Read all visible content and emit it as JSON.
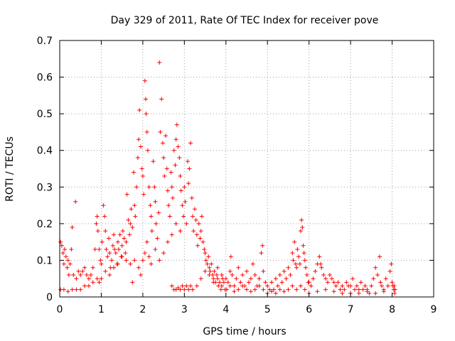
{
  "chart_data": {
    "type": "scatter",
    "title": "Day 329 of 2011, Rate Of TEC Index for receiver pove",
    "xlabel": "GPS time / hours",
    "ylabel": "ROTI / TECUs",
    "xlim": [
      0,
      9
    ],
    "ylim": [
      0,
      0.7
    ],
    "xticks": [
      0,
      1,
      2,
      3,
      4,
      5,
      6,
      7,
      8,
      9
    ],
    "yticks": [
      0,
      0.1,
      0.2,
      0.3,
      0.4,
      0.5,
      0.6,
      0.7
    ],
    "grid": true,
    "marker": "+",
    "color": "#ff0000",
    "points": [
      [
        0.02,
        0.15
      ],
      [
        0.05,
        0.14
      ],
      [
        0.08,
        0.12
      ],
      [
        0.1,
        0.09
      ],
      [
        0.12,
        0.13
      ],
      [
        0.15,
        0.11
      ],
      [
        0.18,
        0.08
      ],
      [
        0.2,
        0.1
      ],
      [
        0.22,
        0.06
      ],
      [
        0.25,
        0.09
      ],
      [
        0.28,
        0.13
      ],
      [
        0.3,
        0.19
      ],
      [
        0.33,
        0.06
      ],
      [
        0.38,
        0.26
      ],
      [
        0.4,
        0.05
      ],
      [
        0.45,
        0.07
      ],
      [
        0.5,
        0.06
      ],
      [
        0.55,
        0.07
      ],
      [
        0.6,
        0.08
      ],
      [
        0.65,
        0.06
      ],
      [
        0.7,
        0.05
      ],
      [
        0.75,
        0.06
      ],
      [
        0.8,
        0.08
      ],
      [
        0.85,
        0.13
      ],
      [
        0.88,
        0.2
      ],
      [
        0.9,
        0.22
      ],
      [
        0.92,
        0.18
      ],
      [
        0.95,
        0.13
      ],
      [
        0.98,
        0.1
      ],
      [
        0.02,
        0.02
      ],
      [
        0.1,
        0.02
      ],
      [
        0.2,
        0.015
      ],
      [
        0.3,
        0.02
      ],
      [
        0.4,
        0.02
      ],
      [
        0.5,
        0.02
      ],
      [
        0.6,
        0.03
      ],
      [
        0.7,
        0.03
      ],
      [
        0.8,
        0.04
      ],
      [
        0.9,
        0.05
      ],
      [
        0.95,
        0.04
      ],
      [
        1.0,
        0.09
      ],
      [
        1.02,
        0.15
      ],
      [
        1.05,
        0.25
      ],
      [
        1.08,
        0.22
      ],
      [
        1.1,
        0.18
      ],
      [
        1.12,
        0.13
      ],
      [
        1.15,
        0.11
      ],
      [
        1.18,
        0.16
      ],
      [
        1.2,
        0.12
      ],
      [
        1.22,
        0.08
      ],
      [
        1.25,
        0.1
      ],
      [
        1.28,
        0.14
      ],
      [
        1.3,
        0.17
      ],
      [
        1.32,
        0.13
      ],
      [
        1.35,
        0.12
      ],
      [
        1.38,
        0.09
      ],
      [
        1.4,
        0.15
      ],
      [
        1.42,
        0.13
      ],
      [
        1.45,
        0.17
      ],
      [
        1.48,
        0.11
      ],
      [
        1.5,
        0.14
      ],
      [
        1.52,
        0.18
      ],
      [
        1.55,
        0.16
      ],
      [
        1.58,
        0.12
      ],
      [
        1.6,
        0.15
      ],
      [
        1.62,
        0.28
      ],
      [
        1.65,
        0.21
      ],
      [
        1.68,
        0.17
      ],
      [
        1.7,
        0.2
      ],
      [
        1.72,
        0.24
      ],
      [
        1.75,
        0.19
      ],
      [
        1.78,
        0.34
      ],
      [
        1.8,
        0.25
      ],
      [
        1.82,
        0.22
      ],
      [
        1.85,
        0.3
      ],
      [
        1.88,
        0.38
      ],
      [
        1.9,
        0.43
      ],
      [
        1.92,
        0.51
      ],
      [
        1.95,
        0.41
      ],
      [
        1.98,
        0.35
      ],
      [
        1.0,
        0.05
      ],
      [
        1.1,
        0.07
      ],
      [
        1.2,
        0.06
      ],
      [
        1.3,
        0.08
      ],
      [
        1.4,
        0.09
      ],
      [
        1.5,
        0.11
      ],
      [
        1.6,
        0.1
      ],
      [
        1.7,
        0.09
      ],
      [
        1.75,
        0.04
      ],
      [
        1.8,
        0.1
      ],
      [
        1.9,
        0.08
      ],
      [
        1.95,
        0.06
      ],
      [
        2.0,
        0.33
      ],
      [
        2.02,
        0.28
      ],
      [
        2.05,
        0.59
      ],
      [
        2.07,
        0.54
      ],
      [
        2.08,
        0.5
      ],
      [
        2.1,
        0.45
      ],
      [
        2.12,
        0.4
      ],
      [
        2.15,
        0.3
      ],
      [
        2.18,
        0.25
      ],
      [
        2.2,
        0.22
      ],
      [
        2.22,
        0.18
      ],
      [
        2.25,
        0.37
      ],
      [
        2.28,
        0.3
      ],
      [
        2.3,
        0.26
      ],
      [
        2.32,
        0.2
      ],
      [
        2.35,
        0.16
      ],
      [
        2.38,
        0.23
      ],
      [
        2.4,
        0.64
      ],
      [
        2.42,
        0.45
      ],
      [
        2.45,
        0.54
      ],
      [
        2.48,
        0.42
      ],
      [
        2.5,
        0.38
      ],
      [
        2.52,
        0.33
      ],
      [
        2.55,
        0.44
      ],
      [
        2.58,
        0.35
      ],
      [
        2.6,
        0.29
      ],
      [
        2.62,
        0.25
      ],
      [
        2.65,
        0.22
      ],
      [
        2.68,
        0.34
      ],
      [
        2.7,
        0.3
      ],
      [
        2.72,
        0.27
      ],
      [
        2.75,
        0.4
      ],
      [
        2.78,
        0.36
      ],
      [
        2.8,
        0.43
      ],
      [
        2.82,
        0.47
      ],
      [
        2.85,
        0.41
      ],
      [
        2.88,
        0.38
      ],
      [
        2.9,
        0.33
      ],
      [
        2.92,
        0.29
      ],
      [
        2.95,
        0.25
      ],
      [
        2.98,
        0.22
      ],
      [
        2.0,
        0.1
      ],
      [
        2.05,
        0.12
      ],
      [
        2.1,
        0.15
      ],
      [
        2.15,
        0.11
      ],
      [
        2.2,
        0.09
      ],
      [
        2.3,
        0.13
      ],
      [
        2.4,
        0.1
      ],
      [
        2.5,
        0.12
      ],
      [
        2.6,
        0.15
      ],
      [
        2.7,
        0.17
      ],
      [
        2.8,
        0.2
      ],
      [
        2.9,
        0.18
      ],
      [
        2.7,
        0.03
      ],
      [
        2.8,
        0.02
      ],
      [
        2.85,
        0.025
      ],
      [
        2.9,
        0.02
      ],
      [
        2.95,
        0.03
      ],
      [
        2.75,
        0.02
      ],
      [
        3.0,
        0.3
      ],
      [
        3.02,
        0.26
      ],
      [
        3.05,
        0.2
      ],
      [
        3.08,
        0.37
      ],
      [
        3.1,
        0.31
      ],
      [
        3.12,
        0.35
      ],
      [
        3.15,
        0.42
      ],
      [
        3.18,
        0.27
      ],
      [
        3.2,
        0.22
      ],
      [
        3.22,
        0.18
      ],
      [
        3.25,
        0.24
      ],
      [
        3.28,
        0.21
      ],
      [
        3.3,
        0.17
      ],
      [
        3.32,
        0.14
      ],
      [
        3.35,
        0.2
      ],
      [
        3.38,
        0.16
      ],
      [
        3.4,
        0.18
      ],
      [
        3.42,
        0.22
      ],
      [
        3.45,
        0.15
      ],
      [
        3.48,
        0.13
      ],
      [
        3.5,
        0.12
      ],
      [
        3.52,
        0.1
      ],
      [
        3.55,
        0.09
      ],
      [
        3.58,
        0.11
      ],
      [
        3.6,
        0.08
      ],
      [
        3.62,
        0.07
      ],
      [
        3.65,
        0.09
      ],
      [
        3.68,
        0.06
      ],
      [
        3.7,
        0.05
      ],
      [
        3.72,
        0.07
      ],
      [
        3.75,
        0.04
      ],
      [
        3.78,
        0.06
      ],
      [
        3.8,
        0.05
      ],
      [
        3.82,
        0.03
      ],
      [
        3.85,
        0.04
      ],
      [
        3.88,
        0.02
      ],
      [
        3.9,
        0.03
      ],
      [
        3.92,
        0.05
      ],
      [
        3.95,
        0.04
      ],
      [
        3.98,
        0.02
      ],
      [
        3.0,
        0.02
      ],
      [
        3.05,
        0.03
      ],
      [
        3.1,
        0.02
      ],
      [
        3.15,
        0.03
      ],
      [
        3.2,
        0.02
      ],
      [
        3.3,
        0.03
      ],
      [
        3.4,
        0.05
      ],
      [
        3.5,
        0.07
      ],
      [
        3.6,
        0.06
      ],
      [
        3.7,
        0.04
      ],
      [
        3.8,
        0.08
      ],
      [
        3.9,
        0.06
      ],
      [
        4.0,
        0.05
      ],
      [
        4.05,
        0.04
      ],
      [
        4.1,
        0.07
      ],
      [
        4.12,
        0.11
      ],
      [
        4.15,
        0.06
      ],
      [
        4.2,
        0.03
      ],
      [
        4.25,
        0.05
      ],
      [
        4.3,
        0.08
      ],
      [
        4.35,
        0.04
      ],
      [
        4.4,
        0.06
      ],
      [
        4.45,
        0.03
      ],
      [
        4.5,
        0.07
      ],
      [
        4.55,
        0.04
      ],
      [
        4.6,
        0.05
      ],
      [
        4.65,
        0.09
      ],
      [
        4.7,
        0.06
      ],
      [
        4.75,
        0.03
      ],
      [
        4.8,
        0.05
      ],
      [
        4.85,
        0.12
      ],
      [
        4.88,
        0.14
      ],
      [
        4.9,
        0.07
      ],
      [
        4.95,
        0.04
      ],
      [
        4.02,
        0.02
      ],
      [
        4.1,
        0.03
      ],
      [
        4.2,
        0.015
      ],
      [
        4.3,
        0.02
      ],
      [
        4.4,
        0.03
      ],
      [
        4.5,
        0.02
      ],
      [
        4.6,
        0.015
      ],
      [
        4.7,
        0.02
      ],
      [
        4.8,
        0.03
      ],
      [
        4.9,
        0.02
      ],
      [
        5.0,
        0.03
      ],
      [
        5.05,
        0.02
      ],
      [
        5.1,
        0.04
      ],
      [
        5.15,
        0.02
      ],
      [
        5.2,
        0.05
      ],
      [
        5.25,
        0.03
      ],
      [
        5.3,
        0.06
      ],
      [
        5.35,
        0.04
      ],
      [
        5.4,
        0.07
      ],
      [
        5.45,
        0.05
      ],
      [
        5.5,
        0.08
      ],
      [
        5.55,
        0.06
      ],
      [
        5.6,
        0.12
      ],
      [
        5.62,
        0.1
      ],
      [
        5.65,
        0.15
      ],
      [
        5.68,
        0.09
      ],
      [
        5.7,
        0.08
      ],
      [
        5.72,
        0.13
      ],
      [
        5.75,
        0.11
      ],
      [
        5.78,
        0.09
      ],
      [
        5.8,
        0.18
      ],
      [
        5.82,
        0.21
      ],
      [
        5.84,
        0.19
      ],
      [
        5.86,
        0.14
      ],
      [
        5.88,
        0.12
      ],
      [
        5.9,
        0.1
      ],
      [
        5.92,
        0.08
      ],
      [
        5.95,
        0.06
      ],
      [
        5.98,
        0.04
      ],
      [
        5.0,
        0.01
      ],
      [
        5.1,
        0.015
      ],
      [
        5.2,
        0.01
      ],
      [
        5.3,
        0.02
      ],
      [
        5.4,
        0.015
      ],
      [
        5.5,
        0.02
      ],
      [
        5.6,
        0.03
      ],
      [
        5.7,
        0.02
      ],
      [
        5.8,
        0.03
      ],
      [
        5.9,
        0.02
      ],
      [
        6.0,
        0.04
      ],
      [
        6.05,
        0.03
      ],
      [
        6.1,
        0.05
      ],
      [
        6.15,
        0.07
      ],
      [
        6.2,
        0.09
      ],
      [
        6.25,
        0.11
      ],
      [
        6.28,
        0.09
      ],
      [
        6.3,
        0.08
      ],
      [
        6.35,
        0.06
      ],
      [
        6.4,
        0.05
      ],
      [
        6.45,
        0.04
      ],
      [
        6.5,
        0.06
      ],
      [
        6.55,
        0.05
      ],
      [
        6.6,
        0.04
      ],
      [
        6.65,
        0.03
      ],
      [
        6.7,
        0.04
      ],
      [
        6.75,
        0.02
      ],
      [
        6.8,
        0.03
      ],
      [
        6.85,
        0.02
      ],
      [
        6.9,
        0.04
      ],
      [
        6.95,
        0.03
      ],
      [
        6.0,
        0.01
      ],
      [
        6.2,
        0.015
      ],
      [
        6.4,
        0.02
      ],
      [
        6.6,
        0.015
      ],
      [
        6.8,
        0.01
      ],
      [
        7.0,
        0.03
      ],
      [
        7.05,
        0.05
      ],
      [
        7.1,
        0.02
      ],
      [
        7.15,
        0.03
      ],
      [
        7.2,
        0.02
      ],
      [
        7.25,
        0.04
      ],
      [
        7.3,
        0.02
      ],
      [
        7.35,
        0.03
      ],
      [
        7.4,
        0.02
      ],
      [
        7.45,
        0.01
      ],
      [
        7.5,
        0.03
      ],
      [
        7.55,
        0.05
      ],
      [
        7.6,
        0.08
      ],
      [
        7.65,
        0.06
      ],
      [
        7.7,
        0.11
      ],
      [
        7.72,
        0.04
      ],
      [
        7.75,
        0.03
      ],
      [
        7.8,
        0.02
      ],
      [
        7.85,
        0.05
      ],
      [
        7.9,
        0.03
      ],
      [
        7.95,
        0.07
      ],
      [
        7.98,
        0.09
      ],
      [
        7.0,
        0.01
      ],
      [
        7.2,
        0.01
      ],
      [
        7.4,
        0.015
      ],
      [
        7.6,
        0.01
      ],
      [
        7.8,
        0.015
      ],
      [
        8.0,
        0.04
      ],
      [
        8.02,
        0.03
      ],
      [
        8.04,
        0.02
      ],
      [
        8.05,
        0.03
      ],
      [
        8.06,
        0.01
      ],
      [
        8.07,
        0.02
      ]
    ]
  }
}
